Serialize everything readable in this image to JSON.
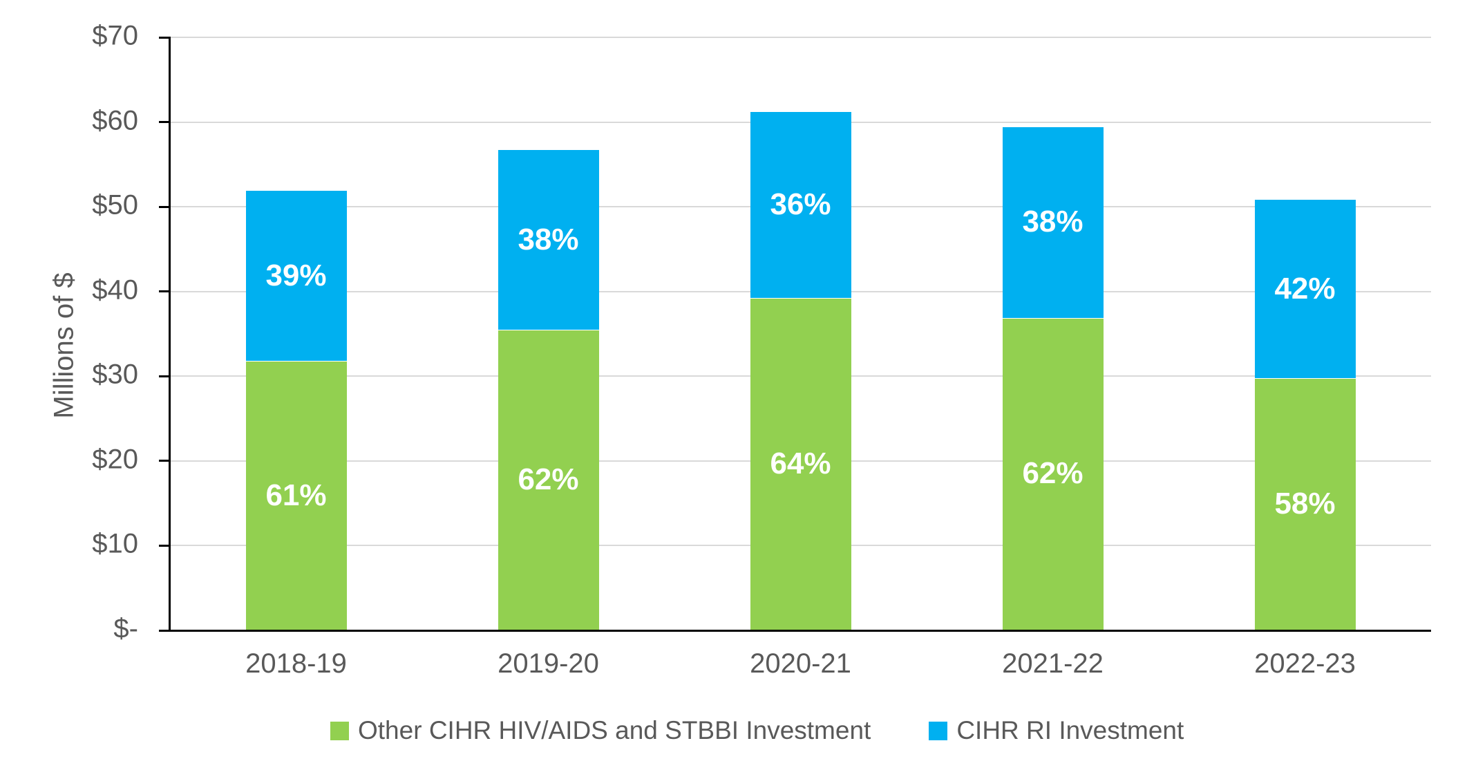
{
  "chart_data": {
    "type": "bar",
    "stacked": true,
    "categories": [
      "2018-19",
      "2019-20",
      "2020-21",
      "2021-22",
      "2022-23"
    ],
    "series": [
      {
        "name": "Other CIHR HIV/AIDS and STBBI Investment",
        "color": "#92D050",
        "values": [
          31.7,
          35.4,
          39.2,
          36.8,
          29.7
        ],
        "segment_labels": [
          "61%",
          "62%",
          "64%",
          "62%",
          "58%"
        ]
      },
      {
        "name": "CIHR RI Investment",
        "color": "#00B0F0",
        "values": [
          20.2,
          21.3,
          22.0,
          22.6,
          21.1
        ],
        "segment_labels": [
          "39%",
          "38%",
          "36%",
          "38%",
          "42%"
        ]
      }
    ],
    "totals": [
      51.9,
      56.7,
      61.2,
      59.4,
      50.8
    ],
    "ylabel": "Millions of $",
    "ylim": [
      0,
      70
    ],
    "ytick_interval": 10,
    "ytick_labels": [
      "$-",
      "$10",
      "$20",
      "$30",
      "$40",
      "$50",
      "$60",
      "$70"
    ],
    "grid": "horizontal-only",
    "legend_position": "bottom"
  }
}
